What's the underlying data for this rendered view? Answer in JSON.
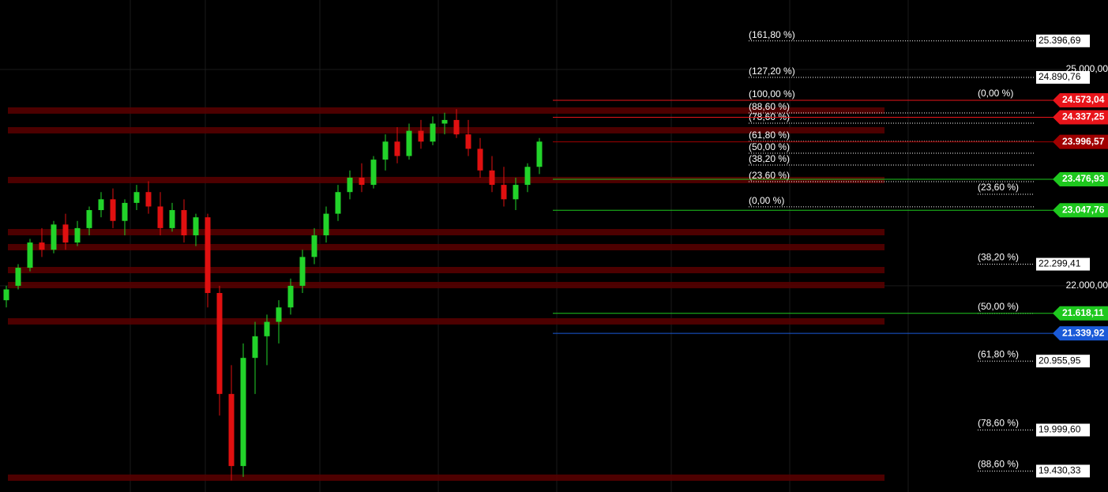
{
  "chart_data": {
    "type": "candlestick",
    "ylim": [
      19140,
      25964
    ],
    "yticks": [
      {
        "value": 25000,
        "label": "25.000,00"
      },
      {
        "value": 22000,
        "label": "22.000,00"
      }
    ],
    "up_color": "#22d32a",
    "down_color": "#e01010",
    "candles": [
      [
        21800,
        22000,
        21700,
        21950
      ],
      [
        22000,
        22300,
        21950,
        22250
      ],
      [
        22250,
        22650,
        22200,
        22600
      ],
      [
        22600,
        22800,
        22400,
        22500
      ],
      [
        22500,
        22900,
        22450,
        22850
      ],
      [
        22850,
        23000,
        22500,
        22600
      ],
      [
        22600,
        22900,
        22550,
        22800
      ],
      [
        22800,
        23100,
        22700,
        23050
      ],
      [
        23050,
        23300,
        22950,
        23200
      ],
      [
        23200,
        23350,
        22800,
        22900
      ],
      [
        22900,
        23200,
        22700,
        23150
      ],
      [
        23150,
        23400,
        23050,
        23300
      ],
      [
        23300,
        23450,
        23000,
        23100
      ],
      [
        23100,
        23300,
        22700,
        22800
      ],
      [
        22800,
        23150,
        22750,
        23050
      ],
      [
        23050,
        23200,
        22600,
        22700
      ],
      [
        22700,
        23000,
        22550,
        22950
      ],
      [
        22950,
        23000,
        21700,
        21900
      ],
      [
        21900,
        22000,
        20200,
        20500
      ],
      [
        20500,
        20900,
        19300,
        19500
      ],
      [
        19500,
        21200,
        19350,
        21000
      ],
      [
        21000,
        21500,
        20500,
        21300
      ],
      [
        21300,
        21600,
        20900,
        21500
      ],
      [
        21500,
        21800,
        21200,
        21700
      ],
      [
        21700,
        22100,
        21600,
        22000
      ],
      [
        22000,
        22500,
        21900,
        22400
      ],
      [
        22400,
        22800,
        22300,
        22700
      ],
      [
        22700,
        23100,
        22600,
        23000
      ],
      [
        23000,
        23400,
        22900,
        23300
      ],
      [
        23300,
        23600,
        23200,
        23500
      ],
      [
        23500,
        23700,
        23300,
        23400
      ],
      [
        23400,
        23800,
        23350,
        23750
      ],
      [
        23750,
        24100,
        23600,
        24000
      ],
      [
        24000,
        24200,
        23700,
        23800
      ],
      [
        23800,
        24250,
        23750,
        24150
      ],
      [
        24150,
        24300,
        23900,
        24000
      ],
      [
        24000,
        24350,
        23950,
        24250
      ],
      [
        24250,
        24400,
        24100,
        24300
      ],
      [
        24300,
        24450,
        24050,
        24100
      ],
      [
        24100,
        24300,
        23800,
        23900
      ],
      [
        23900,
        24050,
        23500,
        23600
      ],
      [
        23600,
        23800,
        23300,
        23400
      ],
      [
        23400,
        23650,
        23100,
        23200
      ],
      [
        23200,
        23500,
        23050,
        23400
      ],
      [
        23400,
        23700,
        23300,
        23650
      ],
      [
        23650,
        24050,
        23550,
        24000
      ]
    ],
    "zones": [
      24431,
      24157,
      23467,
      22744,
      22536,
      22218,
      22010,
      21507,
      19339
    ],
    "zone_color": "#5a0000",
    "fib_upper": [
      {
        "label": "(161,80 %)",
        "price": {
          "value": 25396.69,
          "label": "25.396,69"
        }
      },
      {
        "label": "(127,20 %)",
        "price": {
          "value": 24890.76,
          "label": "24.890,76"
        }
      },
      {
        "label": "(100,00 %)",
        "price": 24573.04
      },
      {
        "label": "(88,60 %)",
        "price": 24398
      },
      {
        "label": "(78,60 %)",
        "price": 24255
      },
      {
        "label": "(61,80 %)",
        "price": 24003
      },
      {
        "label": "(50,00 %)",
        "price": 23839
      },
      {
        "label": "(38,20 %)",
        "price": 23675
      },
      {
        "label": "(23,60 %)",
        "price": 23445
      },
      {
        "label": "(0,00 %)",
        "price": 23095
      }
    ],
    "fib_lower": [
      {
        "label": "(0,00 %)",
        "price": 24573.04
      },
      {
        "label": "(23,60 %)",
        "price": 23270
      },
      {
        "label": "(38,20 %)",
        "price": {
          "value": 22299.41,
          "label": "22.299,41"
        }
      },
      {
        "label": "(50,00 %)",
        "price": 21618.11
      },
      {
        "label": "(61,80 %)",
        "price": {
          "value": 20955.95,
          "label": "20.955,95"
        }
      },
      {
        "label": "(78,60 %)",
        "price": {
          "value": 19999.6,
          "label": "19.999,60"
        }
      },
      {
        "label": "(88,60 %)",
        "price": {
          "value": 19430.33,
          "label": "19.430,33"
        }
      }
    ],
    "price_tags": [
      {
        "value": 24573.04,
        "label": "24.573,04",
        "color": "#e8141a"
      },
      {
        "value": 24337.25,
        "label": "24.337,25",
        "color": "#e8141a"
      },
      {
        "value": 23996.57,
        "label": "23.996,57",
        "color": "#a00000"
      },
      {
        "value": 23476.93,
        "label": "23.476,93",
        "color": "#1ec81e"
      },
      {
        "value": 23047.76,
        "label": "23.047,76",
        "color": "#1ec81e"
      },
      {
        "value": 21618.11,
        "label": "21.618,11",
        "color": "#1ec81e"
      },
      {
        "value": 21339.92,
        "label": "21.339,92",
        "color": "#1a5ad8"
      }
    ]
  }
}
